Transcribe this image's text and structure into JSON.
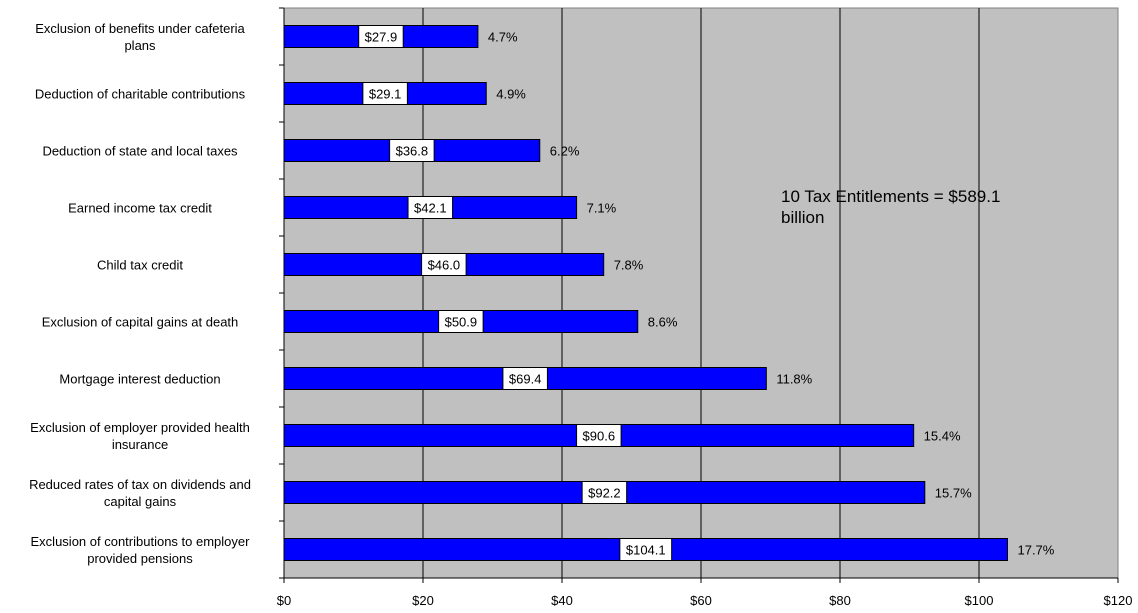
{
  "chart_data": {
    "type": "bar",
    "orientation": "horizontal",
    "categories": [
      [
        "Exclusion of benefits under cafeteria",
        "plans"
      ],
      [
        "Deduction of charitable contributions"
      ],
      [
        "Deduction of state and local taxes"
      ],
      [
        "Earned income tax credit"
      ],
      [
        "Child tax credit"
      ],
      [
        "Exclusion of capital gains at death"
      ],
      [
        "Mortgage interest deduction"
      ],
      [
        "Exclusion of employer provided health",
        "insurance"
      ],
      [
        "Reduced rates of tax on dividends and",
        "capital gains"
      ],
      [
        "Exclusion of contributions to employer",
        "provided pensions"
      ]
    ],
    "values": [
      27.9,
      29.1,
      36.8,
      42.1,
      46.0,
      50.9,
      69.4,
      90.6,
      92.2,
      104.1
    ],
    "value_labels": [
      "$27.9",
      "$29.1",
      "$36.8",
      "$42.1",
      "$46.0",
      "$50.9",
      "$69.4",
      "$90.6",
      "$92.2",
      "$104.1"
    ],
    "percent_labels": [
      "4.7%",
      "4.9%",
      "6.2%",
      "7.1%",
      "7.8%",
      "8.6%",
      "11.8%",
      "15.4%",
      "15.7%",
      "17.7%"
    ],
    "xlim": [
      0,
      120
    ],
    "x_ticks": [
      0,
      20,
      40,
      60,
      80,
      100,
      120
    ],
    "x_tick_labels": [
      "$0",
      "$20",
      "$40",
      "$60",
      "$80",
      "$100",
      "$120"
    ],
    "grid": true,
    "bar_color": "#0000ff",
    "plot_background": "#c0c0c0",
    "annotation": [
      "10 Tax Entitlements = $589.1",
      "billion"
    ]
  }
}
